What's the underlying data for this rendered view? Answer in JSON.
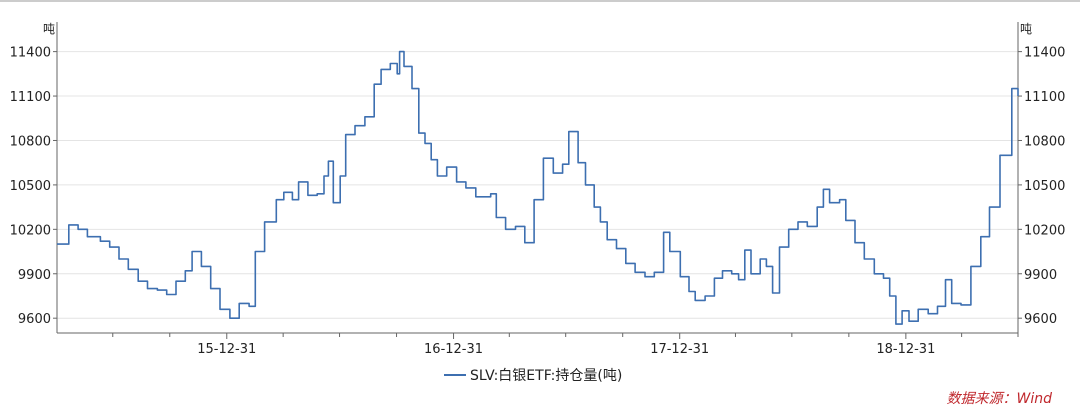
{
  "chart_data": {
    "type": "line",
    "y_unit_left": "吨",
    "y_unit_right": "吨",
    "yticks": [
      9600,
      9900,
      10200,
      10500,
      10800,
      11100,
      11400
    ],
    "ylim": [
      9500,
      11600
    ],
    "xticks": [
      "15-12-31",
      "16-12-31",
      "17-12-31",
      "18-12-31"
    ],
    "xlim": [
      "2015-04-01",
      "2019-06-30"
    ],
    "grid": true,
    "legend_position": "bottom",
    "series": [
      {
        "name": "SLV:白银ETF:持仓量(吨)",
        "color": "#3d6fb0",
        "points": [
          [
            "2015-04-01",
            10100
          ],
          [
            "2015-04-20",
            10230
          ],
          [
            "2015-05-05",
            10200
          ],
          [
            "2015-05-20",
            10150
          ],
          [
            "2015-06-10",
            10120
          ],
          [
            "2015-06-25",
            10080
          ],
          [
            "2015-07-10",
            10000
          ],
          [
            "2015-07-25",
            9930
          ],
          [
            "2015-08-10",
            9850
          ],
          [
            "2015-08-25",
            9800
          ],
          [
            "2015-09-10",
            9790
          ],
          [
            "2015-09-25",
            9760
          ],
          [
            "2015-10-10",
            9850
          ],
          [
            "2015-10-25",
            9920
          ],
          [
            "2015-11-05",
            10050
          ],
          [
            "2015-11-20",
            9950
          ],
          [
            "2015-12-05",
            9800
          ],
          [
            "2015-12-20",
            9660
          ],
          [
            "2016-01-05",
            9600
          ],
          [
            "2016-01-20",
            9700
          ],
          [
            "2016-02-05",
            9680
          ],
          [
            "2016-02-15",
            10050
          ],
          [
            "2016-03-01",
            10250
          ],
          [
            "2016-03-20",
            10400
          ],
          [
            "2016-04-01",
            10450
          ],
          [
            "2016-04-15",
            10400
          ],
          [
            "2016-04-25",
            10520
          ],
          [
            "2016-05-10",
            10430
          ],
          [
            "2016-05-25",
            10440
          ],
          [
            "2016-06-05",
            10560
          ],
          [
            "2016-06-12",
            10660
          ],
          [
            "2016-06-20",
            10380
          ],
          [
            "2016-07-01",
            10560
          ],
          [
            "2016-07-10",
            10840
          ],
          [
            "2016-07-25",
            10900
          ],
          [
            "2016-08-10",
            10960
          ],
          [
            "2016-08-25",
            11180
          ],
          [
            "2016-09-05",
            11280
          ],
          [
            "2016-09-20",
            11320
          ],
          [
            "2016-10-01",
            11250
          ],
          [
            "2016-10-05",
            11400
          ],
          [
            "2016-10-12",
            11300
          ],
          [
            "2016-10-25",
            11150
          ],
          [
            "2016-11-05",
            10850
          ],
          [
            "2016-11-15",
            10780
          ],
          [
            "2016-11-25",
            10670
          ],
          [
            "2016-12-05",
            10560
          ],
          [
            "2016-12-20",
            10620
          ],
          [
            "2017-01-05",
            10520
          ],
          [
            "2017-01-20",
            10480
          ],
          [
            "2017-02-05",
            10420
          ],
          [
            "2017-02-20",
            10420
          ],
          [
            "2017-03-01",
            10440
          ],
          [
            "2017-03-10",
            10280
          ],
          [
            "2017-03-25",
            10200
          ],
          [
            "2017-04-10",
            10220
          ],
          [
            "2017-04-25",
            10110
          ],
          [
            "2017-05-10",
            10400
          ],
          [
            "2017-05-25",
            10680
          ],
          [
            "2017-06-10",
            10580
          ],
          [
            "2017-06-25",
            10640
          ],
          [
            "2017-07-05",
            10860
          ],
          [
            "2017-07-20",
            10650
          ],
          [
            "2017-08-01",
            10500
          ],
          [
            "2017-08-15",
            10350
          ],
          [
            "2017-08-25",
            10250
          ],
          [
            "2017-09-05",
            10130
          ],
          [
            "2017-09-20",
            10070
          ],
          [
            "2017-10-05",
            9970
          ],
          [
            "2017-10-20",
            9910
          ],
          [
            "2017-11-05",
            9880
          ],
          [
            "2017-11-20",
            9910
          ],
          [
            "2017-12-05",
            10180
          ],
          [
            "2017-12-15",
            10050
          ],
          [
            "2018-01-01",
            9880
          ],
          [
            "2018-01-15",
            9780
          ],
          [
            "2018-01-25",
            9720
          ],
          [
            "2018-02-10",
            9750
          ],
          [
            "2018-02-25",
            9870
          ],
          [
            "2018-03-10",
            9920
          ],
          [
            "2018-03-25",
            9900
          ],
          [
            "2018-04-05",
            9860
          ],
          [
            "2018-04-15",
            10060
          ],
          [
            "2018-04-25",
            9900
          ],
          [
            "2018-05-10",
            10000
          ],
          [
            "2018-05-20",
            9950
          ],
          [
            "2018-05-30",
            9770
          ],
          [
            "2018-06-10",
            10080
          ],
          [
            "2018-06-25",
            10200
          ],
          [
            "2018-07-10",
            10250
          ],
          [
            "2018-07-25",
            10220
          ],
          [
            "2018-08-10",
            10350
          ],
          [
            "2018-08-20",
            10470
          ],
          [
            "2018-08-30",
            10380
          ],
          [
            "2018-09-15",
            10400
          ],
          [
            "2018-09-25",
            10260
          ],
          [
            "2018-10-10",
            10110
          ],
          [
            "2018-10-25",
            10000
          ],
          [
            "2018-11-10",
            9900
          ],
          [
            "2018-11-25",
            9870
          ],
          [
            "2018-12-05",
            9750
          ],
          [
            "2018-12-15",
            9560
          ],
          [
            "2018-12-25",
            9650
          ],
          [
            "2019-01-05",
            9580
          ],
          [
            "2019-01-20",
            9660
          ],
          [
            "2019-02-05",
            9630
          ],
          [
            "2019-02-20",
            9680
          ],
          [
            "2019-03-05",
            9860
          ],
          [
            "2019-03-15",
            9700
          ],
          [
            "2019-03-30",
            9690
          ],
          [
            "2019-04-15",
            9950
          ],
          [
            "2019-05-01",
            10150
          ],
          [
            "2019-05-15",
            10350
          ],
          [
            "2019-06-01",
            10700
          ],
          [
            "2019-06-20",
            11150
          ],
          [
            "2019-06-30",
            11100
          ]
        ]
      }
    ]
  },
  "source": "数据来源：Wind"
}
